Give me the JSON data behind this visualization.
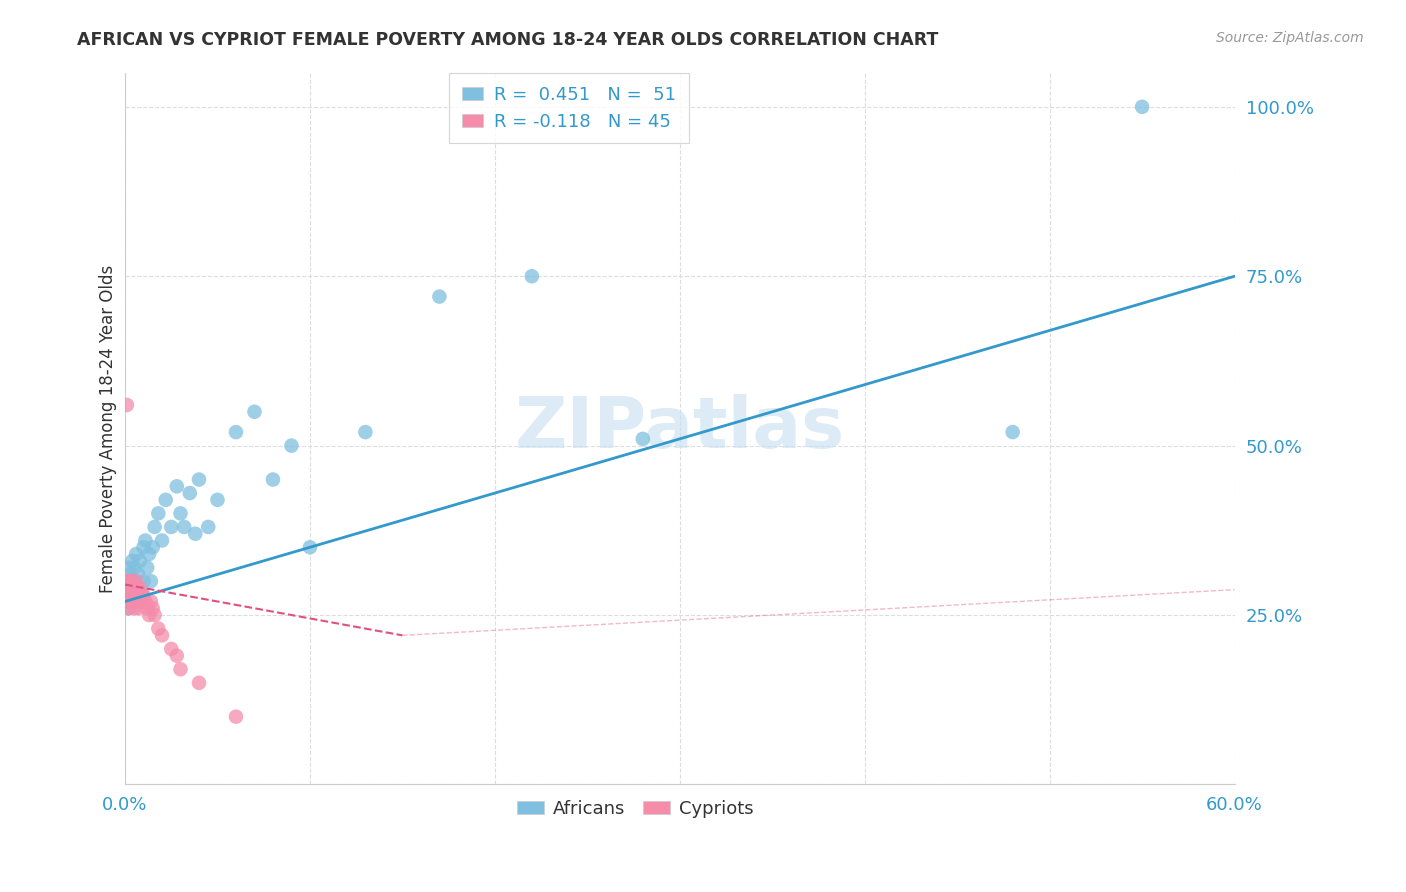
{
  "title": "AFRICAN VS CYPRIOT FEMALE POVERTY AMONG 18-24 YEAR OLDS CORRELATION CHART",
  "source": "Source: ZipAtlas.com",
  "ylabel": "Female Poverty Among 18-24 Year Olds",
  "watermark": "ZIPatlas",
  "african_R": 0.451,
  "african_N": 51,
  "cypriot_R": -0.118,
  "cypriot_N": 45,
  "blue_color": "#7fbfdf",
  "pink_color": "#f48caa",
  "blue_line_color": "#3399cc",
  "pink_line_color": "#e05080",
  "blue_text_color": "#3399cc",
  "title_color": "#333333",
  "source_color": "#999999",
  "background_color": "#ffffff",
  "grid_color": "#dddddd",
  "africans_x": [
    0.001,
    0.001,
    0.002,
    0.002,
    0.002,
    0.003,
    0.003,
    0.003,
    0.004,
    0.004,
    0.005,
    0.005,
    0.005,
    0.006,
    0.006,
    0.007,
    0.007,
    0.008,
    0.008,
    0.009,
    0.01,
    0.01,
    0.011,
    0.012,
    0.013,
    0.014,
    0.015,
    0.016,
    0.018,
    0.02,
    0.022,
    0.025,
    0.028,
    0.03,
    0.032,
    0.035,
    0.038,
    0.04,
    0.045,
    0.05,
    0.06,
    0.07,
    0.08,
    0.09,
    0.1,
    0.13,
    0.17,
    0.22,
    0.28,
    0.48,
    0.55
  ],
  "africans_y": [
    0.28,
    0.3,
    0.26,
    0.29,
    0.32,
    0.27,
    0.3,
    0.31,
    0.28,
    0.33,
    0.27,
    0.3,
    0.32,
    0.28,
    0.34,
    0.29,
    0.31,
    0.27,
    0.33,
    0.28,
    0.3,
    0.35,
    0.36,
    0.32,
    0.34,
    0.3,
    0.35,
    0.38,
    0.4,
    0.36,
    0.42,
    0.38,
    0.44,
    0.4,
    0.38,
    0.43,
    0.37,
    0.45,
    0.38,
    0.42,
    0.52,
    0.55,
    0.45,
    0.5,
    0.35,
    0.52,
    0.72,
    0.75,
    0.51,
    0.52,
    1.0
  ],
  "cypriot_x": [
    0.001,
    0.001,
    0.001,
    0.002,
    0.002,
    0.002,
    0.002,
    0.003,
    0.003,
    0.003,
    0.003,
    0.004,
    0.004,
    0.004,
    0.005,
    0.005,
    0.005,
    0.006,
    0.006,
    0.006,
    0.006,
    0.007,
    0.007,
    0.007,
    0.008,
    0.008,
    0.008,
    0.009,
    0.009,
    0.01,
    0.01,
    0.011,
    0.012,
    0.013,
    0.014,
    0.015,
    0.016,
    0.018,
    0.02,
    0.025,
    0.028,
    0.03,
    0.04,
    0.06,
    0.001
  ],
  "cypriot_y": [
    0.28,
    0.29,
    0.3,
    0.27,
    0.28,
    0.3,
    0.26,
    0.27,
    0.28,
    0.29,
    0.3,
    0.27,
    0.28,
    0.29,
    0.26,
    0.27,
    0.28,
    0.27,
    0.28,
    0.29,
    0.3,
    0.26,
    0.27,
    0.28,
    0.27,
    0.28,
    0.29,
    0.27,
    0.28,
    0.27,
    0.28,
    0.27,
    0.26,
    0.25,
    0.27,
    0.26,
    0.25,
    0.23,
    0.22,
    0.2,
    0.19,
    0.17,
    0.15,
    0.1,
    0.56
  ],
  "xlim": [
    0.0,
    0.6
  ],
  "ylim": [
    0.0,
    1.05
  ],
  "xticks": [
    0.0,
    0.1,
    0.2,
    0.3,
    0.4,
    0.5,
    0.6
  ],
  "yticks": [
    0.0,
    0.25,
    0.5,
    0.75,
    1.0
  ],
  "ytick_labels": [
    "",
    "25.0%",
    "50.0%",
    "75.0%",
    "100.0%"
  ],
  "xtick_labels": [
    "0.0%",
    "",
    "",
    "",
    "",
    "",
    "60.0%"
  ],
  "blue_line_x": [
    0.0,
    0.6
  ],
  "blue_line_y": [
    0.27,
    0.75
  ],
  "pink_line_x": [
    0.0,
    0.15
  ],
  "pink_line_y": [
    0.295,
    0.22
  ]
}
